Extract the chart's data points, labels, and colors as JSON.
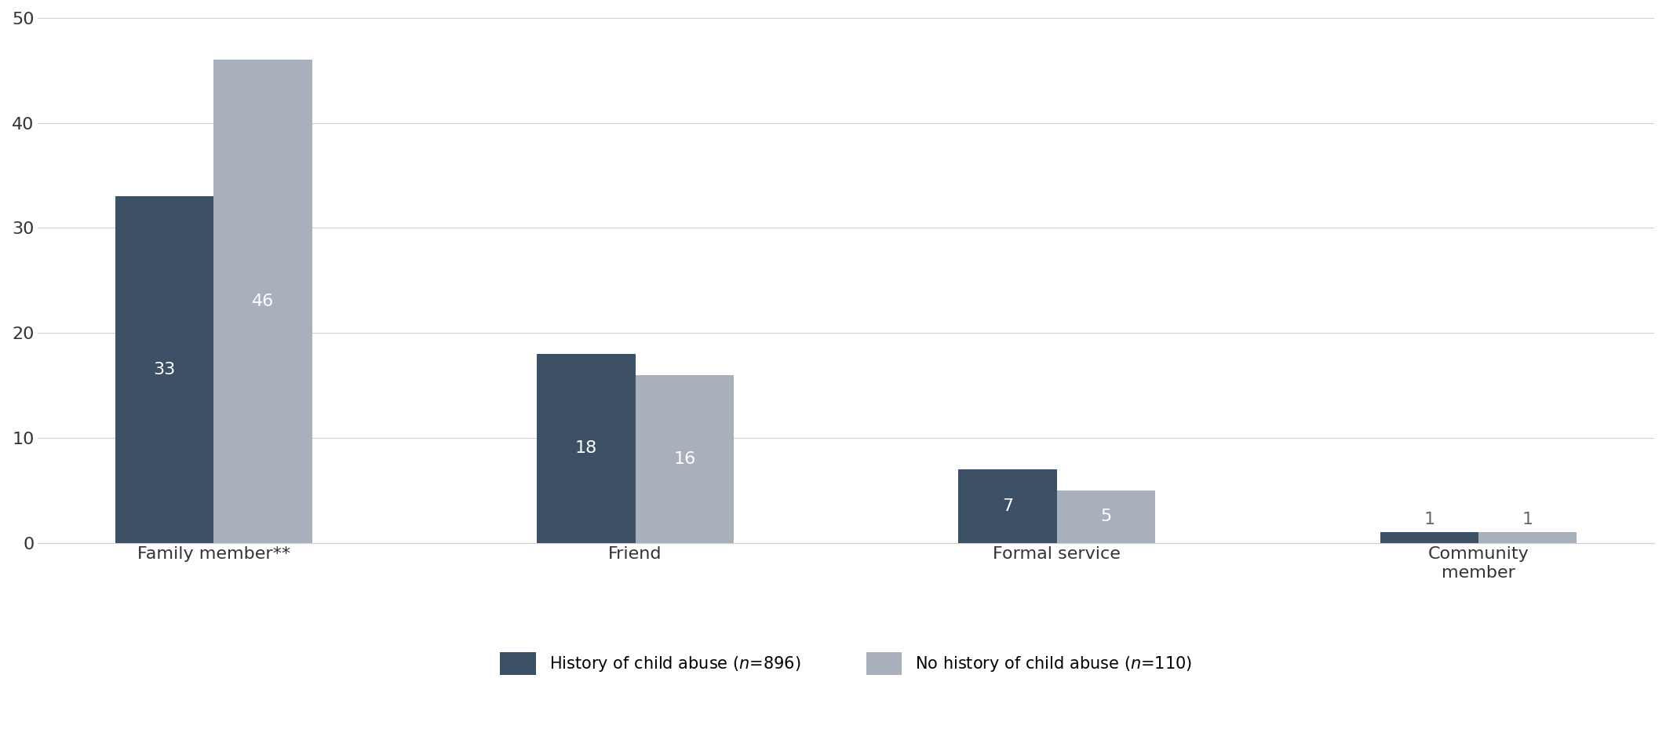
{
  "categories": [
    "Family member**",
    "Friend",
    "Formal service",
    "Community\nmember"
  ],
  "history_values": [
    33,
    18,
    7,
    1
  ],
  "no_history_values": [
    46,
    16,
    5,
    1
  ],
  "history_color": "#3d5166",
  "no_history_color": "#a8b0bb",
  "bar_label_color_inside": "#ffffff",
  "bar_label_color_outside": "#666666",
  "ylim": [
    0,
    50
  ],
  "yticks": [
    0,
    10,
    20,
    30,
    40,
    50
  ],
  "background_color": "#ffffff",
  "bar_width": 0.28,
  "group_positions": [
    0.5,
    1.7,
    2.9,
    4.1
  ],
  "figsize": [
    21.23,
    9.48
  ],
  "dpi": 100,
  "tick_fontsize": 16,
  "label_fontsize": 16,
  "legend_fontsize": 15,
  "inside_label_threshold": 4,
  "xlim": [
    0.0,
    4.6
  ]
}
